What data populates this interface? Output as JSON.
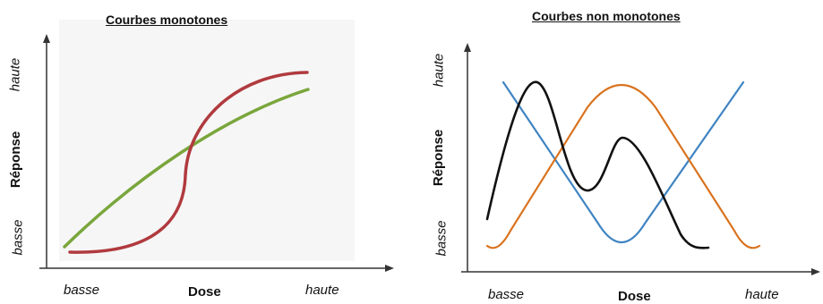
{
  "left": {
    "title": "Courbes monotones",
    "y_axis": {
      "label": "Réponse",
      "high": "haute",
      "low": "basse"
    },
    "x_axis": {
      "label": "Dose",
      "low": "basse",
      "high": "haute"
    },
    "curves": [
      {
        "name": "green-curve",
        "color": "#7aa63c"
      },
      {
        "name": "red-curve",
        "color": "#b03a3e"
      }
    ]
  },
  "right": {
    "title": "Courbes non monotones",
    "y_axis": {
      "label": "Réponse",
      "high": "haute",
      "low": "basse"
    },
    "x_axis": {
      "label": "Dose",
      "low": "basse",
      "high": "haute"
    },
    "curves": [
      {
        "name": "black-curve",
        "color": "#111111"
      },
      {
        "name": "orange-curve",
        "color": "#d9731f"
      },
      {
        "name": "blue-curve",
        "color": "#3f84c2"
      }
    ]
  }
}
